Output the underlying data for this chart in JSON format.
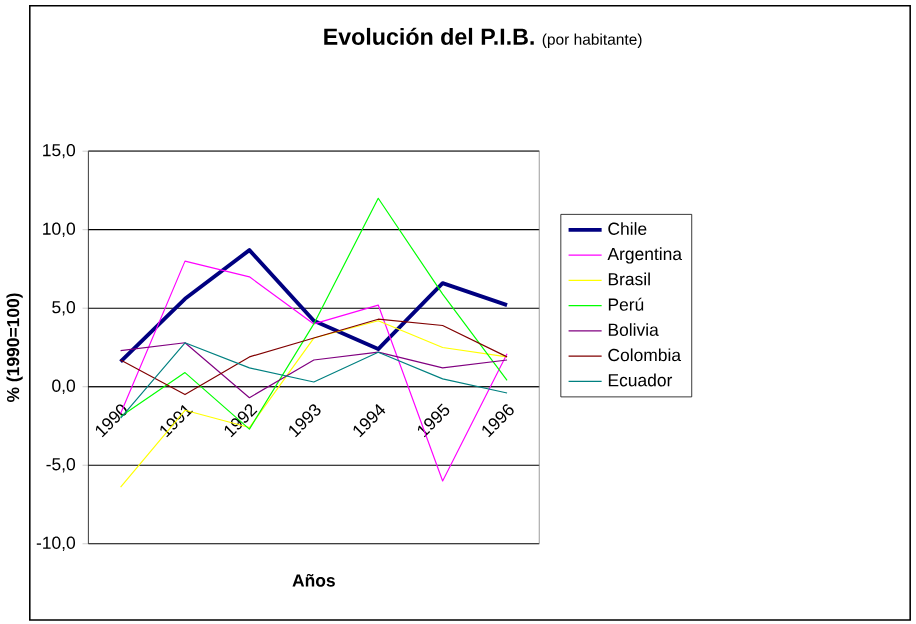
{
  "chart_data": {
    "type": "line",
    "title": "Evolución del P.I.B.",
    "subtitle": "(por habitante)",
    "xlabel": "Años",
    "ylabel": "% (1990=100)",
    "categories": [
      "1990",
      "1991",
      "1992",
      "1993",
      "1994",
      "1995",
      "1996"
    ],
    "series": [
      {
        "name": "Chile",
        "color": "#000080",
        "values": [
          1.6,
          5.6,
          8.7,
          4.2,
          2.4,
          6.6,
          5.2
        ]
      },
      {
        "name": "Argentina",
        "color": "#ff00ff",
        "values": [
          -1.7,
          8.0,
          7.0,
          4.0,
          5.2,
          -6.0,
          2.1
        ]
      },
      {
        "name": "Brasil",
        "color": "#ffff00",
        "values": [
          -6.4,
          -1.5,
          -2.6,
          3.1,
          4.2,
          2.5,
          1.9
        ]
      },
      {
        "name": "Perú",
        "color": "#00ff00",
        "values": [
          -1.9,
          0.9,
          -2.7,
          4.0,
          12.0,
          5.9,
          0.4
        ]
      },
      {
        "name": "Bolivia",
        "color": "#800080",
        "values": [
          2.3,
          2.8,
          -0.7,
          1.7,
          2.2,
          1.2,
          1.7
        ]
      },
      {
        "name": "Colombia",
        "color": "#800000",
        "values": [
          1.7,
          -0.5,
          1.9,
          3.1,
          4.3,
          3.9,
          1.9
        ]
      },
      {
        "name": "Ecuador",
        "color": "#008080",
        "values": [
          -2.0,
          2.8,
          1.2,
          0.3,
          2.2,
          0.5,
          -0.4
        ]
      }
    ],
    "ylim": [
      -10,
      15
    ],
    "yticks": [
      {
        "value": -10,
        "label": "-10,0"
      },
      {
        "value": -5,
        "label": "-5,0"
      },
      {
        "value": 0,
        "label": "0,0"
      },
      {
        "value": 5,
        "label": "5,0"
      },
      {
        "value": 10,
        "label": "10,0"
      },
      {
        "value": 15,
        "label": "15,0"
      }
    ],
    "grid": "y",
    "legend": "right",
    "marker": "none",
    "line_style": "solid"
  }
}
